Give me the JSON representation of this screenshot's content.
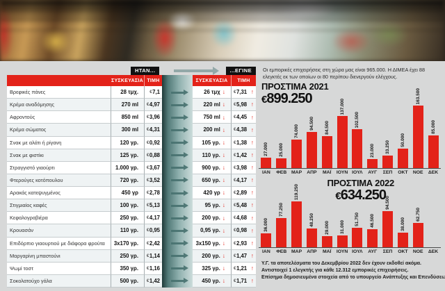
{
  "comparison_table": {
    "was_label": "ΗΤΑΝ...",
    "became_label": "...ΕΓΙΝΕ",
    "package_header": "ΣΥΣΚΕΥΑΣΙΑ",
    "price_header": "ΤΙΜΗ",
    "rows": [
      {
        "product": "Βρεφικές πάνες",
        "old_pack": "28 τμχ.",
        "old_price": "€7,1",
        "new_pack": "26 τμχ",
        "new_price": "€7,31"
      },
      {
        "product": "Κρέμα αναδόμησης",
        "old_pack": "270 ml",
        "old_price": "€4,97",
        "new_pack": "220 ml",
        "new_price": "€5,98"
      },
      {
        "product": "Αφροντούς",
        "old_pack": "850 ml",
        "old_price": "€3,96",
        "new_pack": "750 ml",
        "new_price": "€4,45"
      },
      {
        "product": "Κρέμα σώματος",
        "old_pack": "300 ml",
        "old_price": "€4,31",
        "new_pack": "200 ml",
        "new_price": "€4,38"
      },
      {
        "product": "Σνακ με αλάτι ή ρίγανη",
        "old_pack": "120 γρ.",
        "old_price": "€0,92",
        "new_pack": "105 γρ.",
        "new_price": "€1,38"
      },
      {
        "product": "Σνακ με φιστίκι",
        "old_pack": "125 γρ.",
        "old_price": "€0,88",
        "new_pack": "110 γρ.",
        "new_price": "€1,42"
      },
      {
        "product": "Στραγγιστό γιαούρτι",
        "old_pack": "1.000 γρ.",
        "old_price": "€3,67",
        "new_pack": "900 γρ.",
        "new_price": "€3,98"
      },
      {
        "product": "Φτερούγες κοτόπουλου",
        "old_pack": "720 γρ.",
        "old_price": "€3,52",
        "new_pack": "650 γρ.",
        "new_price": "€4,17"
      },
      {
        "product": "Αρακάς κατεψυγμένος",
        "old_pack": "450 γρ",
        "old_price": "€2,78",
        "new_pack": "420 γρ",
        "new_price": "€2,89"
      },
      {
        "product": "Στιγμιαίος καφές",
        "old_pack": "100 γρ.",
        "old_price": "€5,13",
        "new_pack": "95 γρ.",
        "new_price": "€5,48"
      },
      {
        "product": "Κεφαλογραβιέρα",
        "old_pack": "250 γρ.",
        "old_price": "€4,17",
        "new_pack": "200 γρ.",
        "new_price": "€4,68"
      },
      {
        "product": "Κρουασάν",
        "old_pack": "110 γρ.",
        "old_price": "€0,95",
        "new_pack": "0,95 γρ.",
        "new_price": "€0,98"
      },
      {
        "product": "Επιδόρπιο γιαουρτιού με διάφορα φρούτα",
        "old_pack": "3x170 γρ.",
        "old_price": "€2,42",
        "new_pack": "3x150 γρ.",
        "new_price": "€2,93"
      },
      {
        "product": "Μαργαρίνη μπαστούνι",
        "old_pack": "250 γρ.",
        "old_price": "€1,14",
        "new_pack": "200 γρ.",
        "new_price": "€1,47"
      },
      {
        "product": "Ψωμί τοστ",
        "old_pack": "350 γρ.",
        "old_price": "€1,16",
        "new_pack": "325 γρ.",
        "new_price": "€1,21"
      },
      {
        "product": "Σοκολατούχο γάλα",
        "old_pack": "500 γρ.",
        "old_price": "€1,42",
        "new_pack": "450 γρ.",
        "new_price": "€1,71"
      }
    ]
  },
  "panel": {
    "intro_text": "Οι εμπορικές επιχειρήσεις στη χώρα μας είναι 965.000. Η ΔΙΜΕΑ έχει 88 ελεγκτές εκ των οποίων οι 80 περίπου διενεργούν ελέγχους.",
    "footnotes": [
      "Υ.Γ. τα αποτελέσματα του Δεκεμβρίου 2022 δεν έχουν εκδοθεί ακόμα.",
      "Αντιστοιχεί 1 ελεγκτής για κάθε 12.312 εμπορικές επιχειρήσεις.",
      "Επίσημα δημοσιευμένα στοιχεία από το υπουργείο Ανάπτυξης και Επενδύσεων."
    ]
  },
  "chart_data": [
    {
      "type": "bar",
      "title": "ΠΡΟΣΤΙΜΑ 2021",
      "total_label": "€899.250",
      "categories": [
        "ΙΑΝ",
        "ΦΕΒ",
        "ΜΑΡ",
        "ΑΠΡ",
        "ΜΑΪ",
        "ΙΟΥΝ",
        "ΙΟΥΛ",
        "ΑΥΓ",
        "ΣΕΠ",
        "ΟΚΤ",
        "ΝΟΕ",
        "ΔΕΚ"
      ],
      "values": [
        27000,
        25000,
        74000,
        94500,
        84500,
        137000,
        102500,
        23000,
        33250,
        50000,
        163500,
        85000
      ],
      "value_labels": [
        "27.000",
        "25.000",
        "74.000",
        "94.500",
        "84.500",
        "137.000",
        "102.500",
        "23.000",
        "33.250",
        "50.000",
        "163.500",
        "85.000"
      ],
      "ylim": [
        0,
        170000
      ],
      "bar_color": "#e32219"
    },
    {
      "type": "bar",
      "title": "ΠΡΟΣΤΙΜΑ 2022",
      "total_label": "€634.250",
      "categories": [
        "ΙΑΝ",
        "ΦΕΒ",
        "ΜΑΡ",
        "ΑΠΡ",
        "ΜΑΪ",
        "ΙΟΥΝ",
        "ΙΟΥΛ",
        "ΑΥΓ",
        "ΣΕΠ",
        "ΟΚΤ",
        "ΝΟΕ",
        "ΔΕΚ"
      ],
      "values": [
        36000,
        77250,
        119250,
        48250,
        29000,
        31000,
        51750,
        46500,
        94500,
        38000,
        62750,
        null
      ],
      "value_labels": [
        "36.000",
        "77.250",
        "119.250",
        "48.250",
        "29.000",
        "31.000",
        "51.750",
        "46.500",
        "94.500",
        "38.000",
        "62.750",
        ""
      ],
      "ylim": [
        0,
        130000
      ],
      "bar_color": "#e32219"
    }
  ],
  "colors": {
    "accent_red": "#e32219",
    "band_teal_dark": "#1f3a39",
    "band_teal_light": "#ccdcdb",
    "page_bg": "#d7d8d8"
  }
}
